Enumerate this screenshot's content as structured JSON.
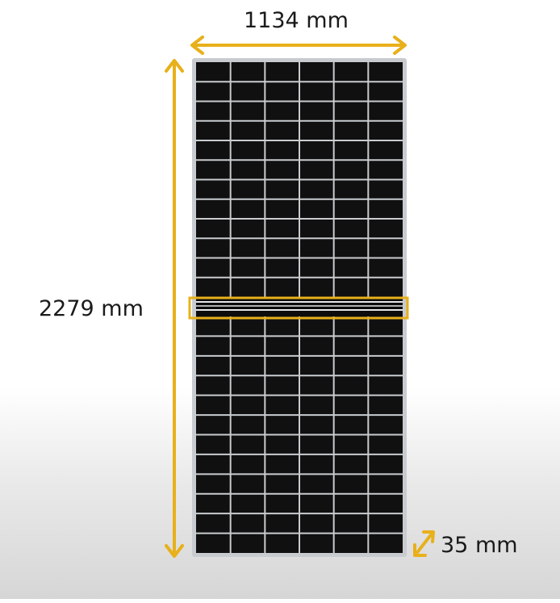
{
  "dimensions": {
    "width_label": "1134 mm",
    "height_label": "2279 mm",
    "depth_label": "35 mm"
  },
  "panel": {
    "cell_columns": 6,
    "cell_rows_per_half": 12,
    "frame_color": "#c8ccd0",
    "cell_color": "#101010",
    "grid_line_color": "#c9cccf"
  },
  "colors": {
    "accent": "#e8b01a",
    "text": "#1a1a1a"
  },
  "icons": {
    "width_arrow": "double-arrow-horizontal",
    "height_arrow": "double-arrow-vertical",
    "depth_arrow": "double-arrow-diagonal",
    "junction_highlight": "highlight-rectangle"
  }
}
